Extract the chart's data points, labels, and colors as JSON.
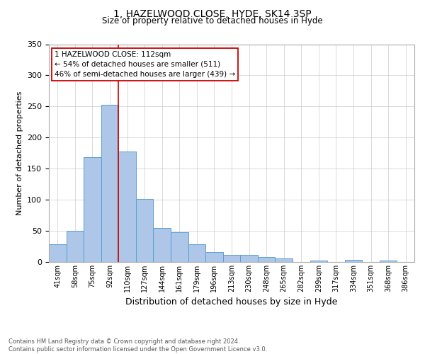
{
  "title_line1": "1, HAZELWOOD CLOSE, HYDE, SK14 3SP",
  "title_line2": "Size of property relative to detached houses in Hyde",
  "xlabel": "Distribution of detached houses by size in Hyde",
  "ylabel": "Number of detached properties",
  "bin_labels": [
    "41sqm",
    "58sqm",
    "75sqm",
    "92sqm",
    "110sqm",
    "127sqm",
    "144sqm",
    "161sqm",
    "179sqm",
    "196sqm",
    "213sqm",
    "230sqm",
    "248sqm",
    "265sqm",
    "282sqm",
    "299sqm",
    "317sqm",
    "334sqm",
    "351sqm",
    "368sqm",
    "386sqm"
  ],
  "bar_values": [
    29,
    50,
    169,
    253,
    178,
    101,
    55,
    48,
    29,
    16,
    11,
    11,
    8,
    6,
    0,
    2,
    0,
    3,
    0,
    2,
    0
  ],
  "bar_color": "#aec6e8",
  "bar_edge_color": "#5a9fd4",
  "vline_color": "#cc0000",
  "ylim": [
    0,
    350
  ],
  "yticks": [
    0,
    50,
    100,
    150,
    200,
    250,
    300,
    350
  ],
  "annotation_title": "1 HAZELWOOD CLOSE: 112sqm",
  "annotation_line1": "← 54% of detached houses are smaller (511)",
  "annotation_line2": "46% of semi-detached houses are larger (439) →",
  "annotation_box_color": "#ffffff",
  "annotation_box_edgecolor": "#cc0000",
  "footer_line1": "Contains HM Land Registry data © Crown copyright and database right 2024.",
  "footer_line2": "Contains public sector information licensed under the Open Government Licence v3.0.",
  "background_color": "#ffffff",
  "grid_color": "#cccccc"
}
